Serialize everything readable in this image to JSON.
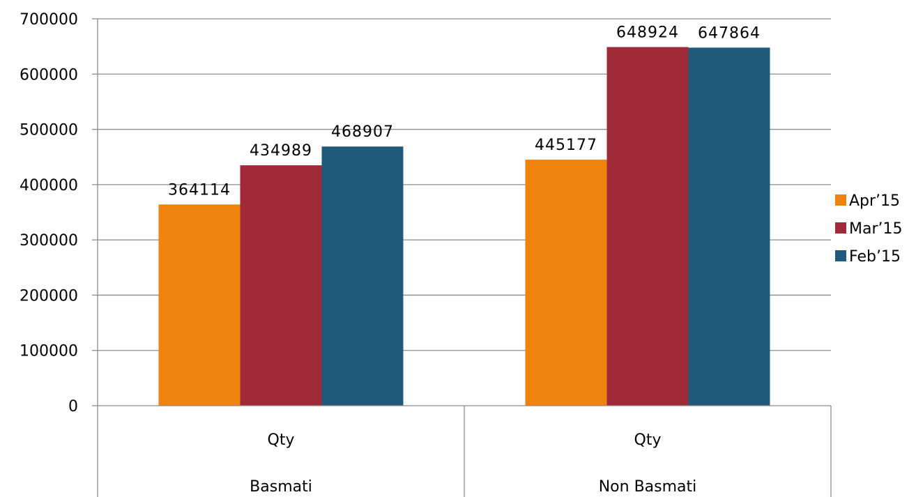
{
  "chart_data": {
    "type": "bar",
    "categories": [
      {
        "label": "Qty",
        "group": "Basmati"
      },
      {
        "label": "Qty",
        "group": "Non Basmati"
      }
    ],
    "series": [
      {
        "name": "Apr’15",
        "color": "#F0820F",
        "values": [
          364114,
          445177
        ]
      },
      {
        "name": "Mar’15",
        "color": "#A12A38",
        "values": [
          434989,
          648924
        ]
      },
      {
        "name": "Feb’15",
        "color": "#1F5A7C",
        "values": [
          468907,
          647864
        ]
      }
    ],
    "data_labels": [
      [
        "364114",
        "445177"
      ],
      [
        "434989",
        "648924"
      ],
      [
        "468907",
        "647864"
      ]
    ],
    "y_ticks": [
      0,
      100000,
      200000,
      300000,
      400000,
      500000,
      600000,
      700000
    ],
    "ylim": [
      0,
      700000
    ],
    "grid": true,
    "legend": "right"
  }
}
